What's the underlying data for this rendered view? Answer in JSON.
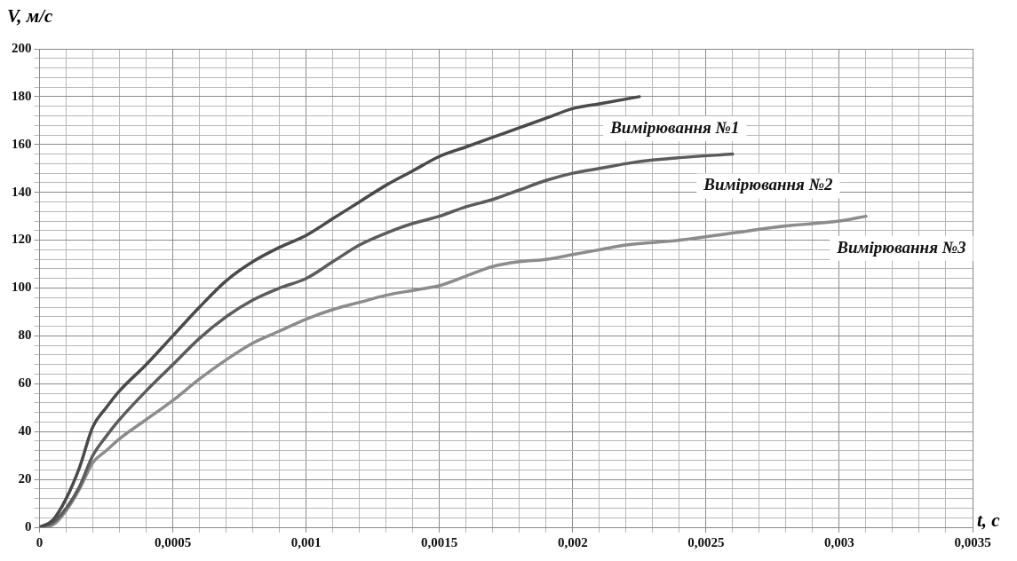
{
  "chart_data": {
    "type": "line",
    "xlabel": "t, с",
    "ylabel": "V, м/с",
    "grid": true,
    "legend": false,
    "marker": "none",
    "line_style": "solid",
    "xlim": [
      0,
      0.0035
    ],
    "ylim": [
      0,
      200
    ],
    "xticks": [
      0,
      {
        "value": 0.0001,
        "label": null
      },
      {
        "value": 0.0002,
        "label": null
      },
      {
        "value": 0.0003,
        "label": null
      },
      {
        "value": 0.0004,
        "label": null
      },
      {
        "value": 0.0005,
        "label": "0,0005"
      },
      {
        "value": 0.0006,
        "label": null
      },
      {
        "value": 0.0007,
        "label": null
      },
      {
        "value": 0.0008,
        "label": null
      },
      {
        "value": 0.0009,
        "label": null
      },
      {
        "value": 0.001,
        "label": "0,001"
      },
      {
        "value": 0.0011,
        "label": null
      },
      {
        "value": 0.0012,
        "label": null
      },
      {
        "value": 0.0013,
        "label": null
      },
      {
        "value": 0.0014,
        "label": null
      },
      {
        "value": 0.0015,
        "label": "0,0015"
      },
      {
        "value": 0.0016,
        "label": null
      },
      {
        "value": 0.0017,
        "label": null
      },
      {
        "value": 0.0018,
        "label": null
      },
      {
        "value": 0.0019,
        "label": null
      },
      {
        "value": 0.002,
        "label": "0,002"
      },
      {
        "value": 0.0021,
        "label": null
      },
      {
        "value": 0.0022,
        "label": null
      },
      {
        "value": 0.0023,
        "label": null
      },
      {
        "value": 0.0024,
        "label": null
      },
      {
        "value": 0.0025,
        "label": "0,0025"
      },
      {
        "value": 0.0026,
        "label": null
      },
      {
        "value": 0.0027,
        "label": null
      },
      {
        "value": 0.0028,
        "label": null
      },
      {
        "value": 0.0029,
        "label": null
      },
      {
        "value": 0.003,
        "label": "0,003"
      },
      {
        "value": 0.0031,
        "label": null
      },
      {
        "value": 0.0032,
        "label": null
      },
      {
        "value": 0.0033,
        "label": null
      },
      {
        "value": 0.0034,
        "label": null
      },
      {
        "value": 0.0035,
        "label": "0,0035"
      }
    ],
    "yticks": [
      0,
      {
        "value": 4,
        "label": null
      },
      {
        "value": 8,
        "label": null
      },
      {
        "value": 12,
        "label": null
      },
      {
        "value": 16,
        "label": null
      },
      20,
      {
        "value": 24,
        "label": null
      },
      {
        "value": 28,
        "label": null
      },
      {
        "value": 32,
        "label": null
      },
      {
        "value": 36,
        "label": null
      },
      40,
      {
        "value": 44,
        "label": null
      },
      {
        "value": 48,
        "label": null
      },
      {
        "value": 52,
        "label": null
      },
      {
        "value": 56,
        "label": null
      },
      60,
      {
        "value": 64,
        "label": null
      },
      {
        "value": 68,
        "label": null
      },
      {
        "value": 72,
        "label": null
      },
      {
        "value": 76,
        "label": null
      },
      80,
      {
        "value": 84,
        "label": null
      },
      {
        "value": 88,
        "label": null
      },
      {
        "value": 92,
        "label": null
      },
      {
        "value": 96,
        "label": null
      },
      100,
      {
        "value": 104,
        "label": null
      },
      {
        "value": 108,
        "label": null
      },
      {
        "value": 112,
        "label": null
      },
      {
        "value": 116,
        "label": null
      },
      120,
      {
        "value": 124,
        "label": null
      },
      {
        "value": 128,
        "label": null
      },
      {
        "value": 132,
        "label": null
      },
      {
        "value": 136,
        "label": null
      },
      140,
      {
        "value": 144,
        "label": null
      },
      {
        "value": 148,
        "label": null
      },
      {
        "value": 152,
        "label": null
      },
      {
        "value": 156,
        "label": null
      },
      160,
      {
        "value": 164,
        "label": null
      },
      {
        "value": 168,
        "label": null
      },
      {
        "value": 172,
        "label": null
      },
      {
        "value": 176,
        "label": null
      },
      180,
      {
        "value": 184,
        "label": null
      },
      {
        "value": 188,
        "label": null
      },
      {
        "value": 192,
        "label": null
      },
      {
        "value": 196,
        "label": null
      },
      200
    ],
    "series": [
      {
        "name": "Вимірювання №1",
        "color": "#4a4a4a",
        "x": [
          0,
          5e-05,
          0.0001,
          0.00015,
          0.0002,
          0.00025,
          0.0003,
          0.0004,
          0.0005,
          0.0006,
          0.0007,
          0.0008,
          0.0009,
          0.001,
          0.0011,
          0.0012,
          0.0013,
          0.0014,
          0.0015,
          0.0016,
          0.0017,
          0.0018,
          0.0019,
          0.002,
          0.0021,
          0.00225
        ],
        "values": [
          0,
          3,
          12,
          25,
          42,
          50,
          57,
          68,
          80,
          92,
          103,
          111,
          117,
          122,
          129,
          136,
          143,
          149,
          155,
          159,
          163,
          167,
          171,
          175,
          177,
          180
        ]
      },
      {
        "name": "Вимірювання №2",
        "color": "#5c5c5c",
        "x": [
          0,
          5e-05,
          0.0001,
          0.00015,
          0.0002,
          0.00025,
          0.0003,
          0.0004,
          0.0005,
          0.0006,
          0.0007,
          0.0008,
          0.0009,
          0.001,
          0.0011,
          0.0012,
          0.0013,
          0.0014,
          0.0015,
          0.0016,
          0.0017,
          0.0018,
          0.0019,
          0.002,
          0.0021,
          0.0022,
          0.0023,
          0.0024,
          0.0026
        ],
        "values": [
          0,
          2,
          8,
          17,
          30,
          38,
          45,
          57,
          68,
          79,
          88,
          95,
          100,
          104,
          111,
          118,
          123,
          127,
          130,
          134,
          137,
          141,
          145,
          148,
          150,
          152,
          153.5,
          154.5,
          156
        ]
      },
      {
        "name": "Вимірювання №3",
        "color": "#8c8c8c",
        "x": [
          0,
          5e-05,
          0.0001,
          0.00015,
          0.0002,
          0.00025,
          0.0003,
          0.0004,
          0.0005,
          0.0006,
          0.0007,
          0.0008,
          0.0009,
          0.001,
          0.0011,
          0.0012,
          0.0013,
          0.0014,
          0.0015,
          0.0016,
          0.0017,
          0.0018,
          0.0019,
          0.002,
          0.0021,
          0.0022,
          0.0024,
          0.0026,
          0.0028,
          0.003,
          0.0031
        ],
        "values": [
          0,
          1,
          7,
          16,
          27,
          32,
          37,
          45,
          53,
          62,
          70,
          77,
          82,
          87,
          91,
          94,
          97,
          99,
          101,
          105,
          109,
          111,
          112,
          114,
          116,
          118,
          120,
          123,
          126,
          128,
          130
        ]
      }
    ]
  }
}
